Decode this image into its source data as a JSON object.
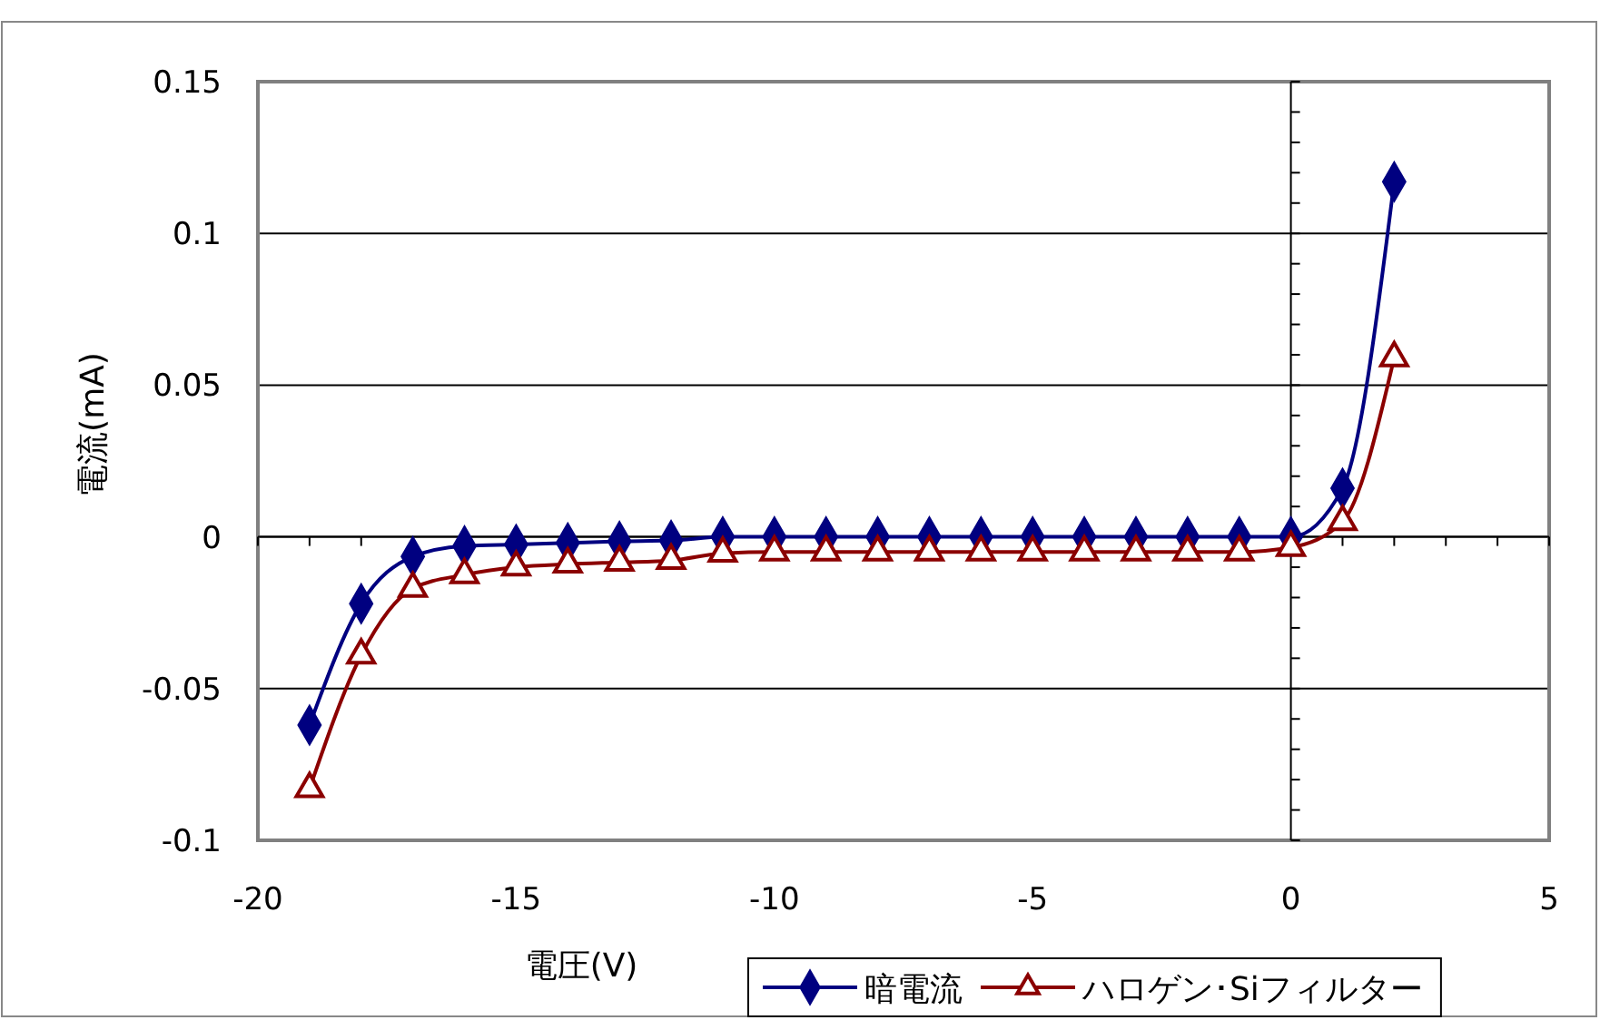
{
  "chart_data": {
    "type": "line",
    "xlabel": "電圧(V)",
    "ylabel": "電流(mA)",
    "x": [
      -19,
      -18,
      -17,
      -16,
      -15,
      -14,
      -13,
      -12,
      -11,
      -10,
      -9,
      -8,
      -7,
      -6,
      -5,
      -4,
      -3,
      -2,
      -1,
      0,
      1,
      2
    ],
    "series": [
      {
        "name": "暗電流",
        "color": "#000080",
        "marker": "diamond",
        "values": [
          -0.062,
          -0.022,
          -0.0065,
          -0.003,
          -0.0025,
          -0.002,
          -0.0015,
          -0.0012,
          0,
          0,
          0,
          0,
          0,
          0,
          0,
          0,
          0,
          0,
          0,
          0,
          0.016,
          0.117
        ]
      },
      {
        "name": "ハロゲン･Siフィルター",
        "color": "#8b0000",
        "marker": "triangle",
        "values": [
          -0.083,
          -0.039,
          -0.017,
          -0.0125,
          -0.01,
          -0.009,
          -0.0084,
          -0.0078,
          -0.0054,
          -0.005,
          -0.005,
          -0.005,
          -0.005,
          -0.005,
          -0.005,
          -0.005,
          -0.005,
          -0.005,
          -0.005,
          -0.0035,
          0.005,
          0.059
        ]
      }
    ],
    "xlim": [
      -20,
      5
    ],
    "xticks": [
      -20,
      -15,
      -10,
      -5,
      0,
      5
    ],
    "ylim": [
      -0.1,
      0.15
    ],
    "yticks": [
      -0.1,
      -0.05,
      0,
      0.05,
      0.1,
      0.15
    ],
    "grid": "y",
    "ref_lines": [
      {
        "axis": "x",
        "value": 0,
        "color": "#000000"
      }
    ],
    "legend": "bottom right"
  }
}
